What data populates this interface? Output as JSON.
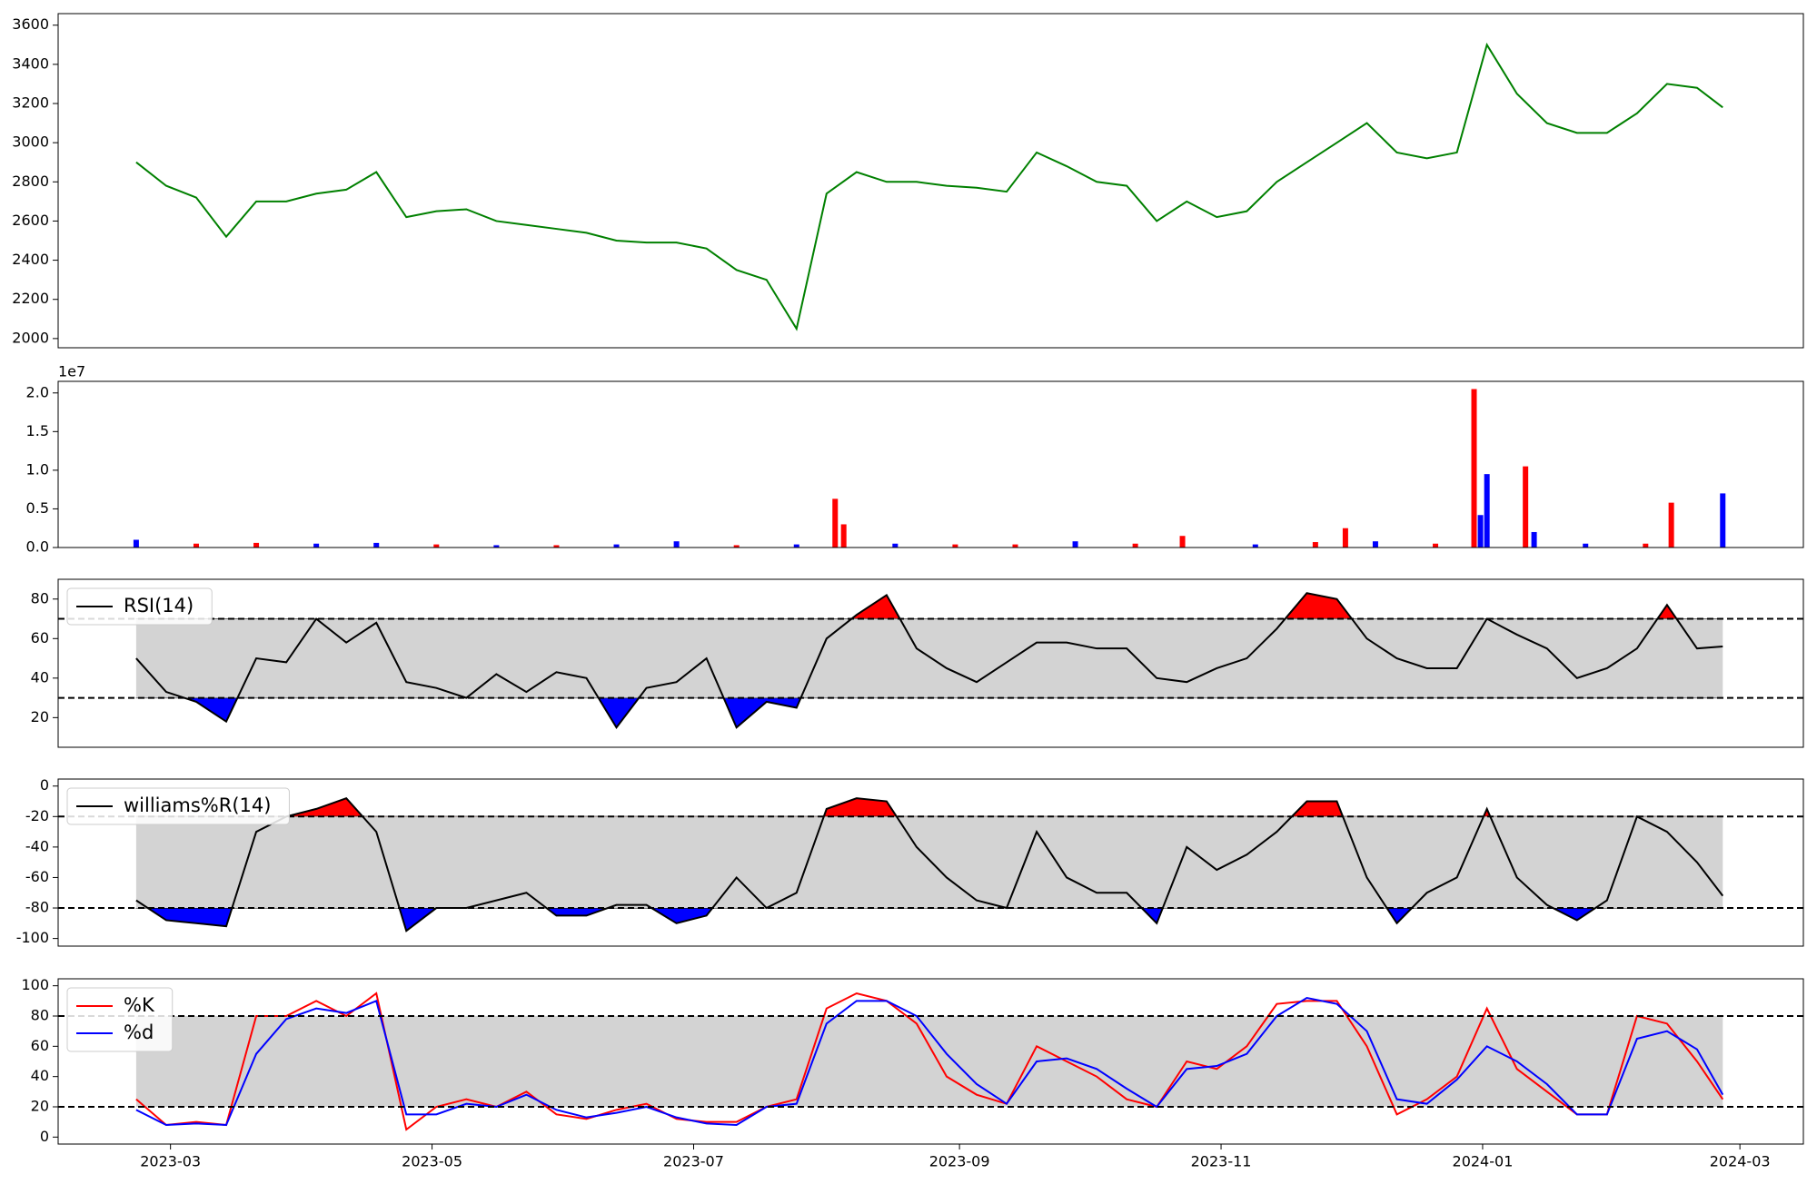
{
  "chart_data": [
    {
      "type": "line",
      "xlim": [
        1.8,
        408.8
      ],
      "ylim": [
        1953,
        3659
      ],
      "yticks": [
        2000,
        2200,
        2400,
        2600,
        2800,
        3000,
        3200,
        3400,
        3600
      ],
      "x": [
        20,
        27,
        34,
        41,
        48,
        55,
        62,
        69,
        76,
        83,
        90,
        97,
        104,
        111,
        118,
        125,
        132,
        139,
        146,
        153,
        160,
        167,
        174,
        181,
        188,
        195,
        202,
        209,
        216,
        223,
        230,
        237,
        244,
        251,
        258,
        265,
        272,
        279,
        286,
        293,
        300,
        307,
        314,
        321,
        328,
        335,
        342,
        349,
        356,
        363,
        370,
        377,
        384,
        390
      ],
      "series": [
        {
          "color": "green",
          "values": [
            2900,
            2780,
            2720,
            2520,
            2700,
            2700,
            2740,
            2760,
            2850,
            2620,
            2650,
            2660,
            2600,
            2580,
            2560,
            2540,
            2500,
            2490,
            2490,
            2460,
            2350,
            2300,
            2050,
            2740,
            2850,
            2800,
            2800,
            2780,
            2770,
            2750,
            2950,
            2880,
            2800,
            2780,
            2600,
            2700,
            2620,
            2650,
            2800,
            2900,
            3000,
            3100,
            2950,
            2920,
            2950,
            3500,
            3250,
            3100,
            3050,
            3050,
            3150,
            3300,
            3280,
            3180
          ]
        }
      ]
    },
    {
      "type": "bar",
      "xlim": [
        1.8,
        408.8
      ],
      "ylim": [
        0,
        2.15
      ],
      "offset_label": "1e7",
      "yticks": [
        {
          "value": 0,
          "label": "0.0"
        },
        0.5,
        {
          "value": 1,
          "label": "1.0"
        },
        1.5,
        {
          "value": 2,
          "label": "2.0"
        }
      ],
      "x": [
        20,
        34,
        48,
        62,
        76,
        90,
        104,
        118,
        132,
        146,
        160,
        174,
        183,
        185,
        197,
        211,
        225,
        239,
        253,
        264,
        281,
        295,
        302,
        309,
        323,
        332,
        333.5,
        335,
        344,
        346,
        358,
        372,
        378,
        390
      ],
      "values": [
        0.1,
        0.05,
        0.06,
        0.05,
        0.06,
        0.04,
        0.03,
        0.03,
        0.04,
        0.08,
        0.03,
        0.04,
        0.63,
        0.3,
        0.05,
        0.04,
        0.04,
        0.08,
        0.05,
        0.15,
        0.04,
        0.07,
        0.25,
        0.08,
        0.05,
        2.05,
        0.42,
        0.95,
        1.05,
        0.2,
        0.05,
        0.05,
        0.58,
        0.7
      ],
      "colors": [
        "blue",
        "red",
        "red",
        "blue",
        "blue",
        "red",
        "blue",
        "red",
        "blue",
        "blue",
        "red",
        "blue",
        "red",
        "red",
        "blue",
        "red",
        "red",
        "blue",
        "red",
        "red",
        "blue",
        "red",
        "red",
        "blue",
        "red",
        "red",
        "blue",
        "blue",
        "red",
        "blue",
        "blue",
        "red",
        "red",
        "blue"
      ]
    },
    {
      "type": "line",
      "xlim": [
        1.8,
        408.8
      ],
      "ylim": [
        5,
        90
      ],
      "yticks": [
        20,
        40,
        60,
        80
      ],
      "thresholds": [
        30,
        70
      ],
      "band_color": "#d3d3d3",
      "above_color": "red",
      "below_color": "blue",
      "legend": "upper left",
      "x": [
        20,
        27,
        34,
        41,
        48,
        55,
        62,
        69,
        76,
        83,
        90,
        97,
        104,
        111,
        118,
        125,
        132,
        139,
        146,
        153,
        160,
        167,
        174,
        181,
        188,
        195,
        202,
        209,
        216,
        223,
        230,
        237,
        244,
        251,
        258,
        265,
        272,
        279,
        286,
        293,
        300,
        307,
        314,
        321,
        328,
        335,
        342,
        349,
        356,
        363,
        370,
        377,
        384,
        390
      ],
      "series": [
        {
          "name": "RSI(14)",
          "color": "black",
          "values": [
            50,
            33,
            28,
            18,
            50,
            48,
            70,
            58,
            68,
            38,
            35,
            30,
            42,
            33,
            43,
            40,
            15,
            35,
            38,
            50,
            15,
            28,
            25,
            60,
            72,
            82,
            55,
            45,
            38,
            48,
            58,
            58,
            55,
            55,
            40,
            38,
            45,
            50,
            65,
            83,
            80,
            60,
            50,
            45,
            45,
            70,
            62,
            55,
            40,
            45,
            55,
            77,
            55,
            56
          ]
        }
      ]
    },
    {
      "type": "line",
      "xlim": [
        1.8,
        408.8
      ],
      "ylim": [
        -105,
        4.6
      ],
      "yticks": [
        -100,
        -80,
        -60,
        -40,
        -20,
        0
      ],
      "thresholds": [
        -80,
        -20
      ],
      "band_color": "#d3d3d3",
      "above_color": "red",
      "below_color": "blue",
      "legend": "upper left",
      "x": [
        20,
        27,
        34,
        41,
        48,
        55,
        62,
        69,
        76,
        83,
        90,
        97,
        104,
        111,
        118,
        125,
        132,
        139,
        146,
        153,
        160,
        167,
        174,
        181,
        188,
        195,
        202,
        209,
        216,
        223,
        230,
        237,
        244,
        251,
        258,
        265,
        272,
        279,
        286,
        293,
        300,
        307,
        314,
        321,
        328,
        335,
        342,
        349,
        356,
        363,
        370,
        377,
        384,
        390
      ],
      "series": [
        {
          "name": "williams%R(14)",
          "color": "black",
          "values": [
            -75,
            -88,
            -90,
            -92,
            -30,
            -20,
            -15,
            -8,
            -30,
            -95,
            -80,
            -80,
            -75,
            -70,
            -85,
            -85,
            -78,
            -78,
            -90,
            -85,
            -60,
            -80,
            -70,
            -15,
            -8,
            -10,
            -40,
            -60,
            -75,
            -80,
            -30,
            -60,
            -70,
            -70,
            -90,
            -40,
            -55,
            -45,
            -30,
            -10,
            -10,
            -60,
            -90,
            -70,
            -60,
            -15,
            -60,
            -78,
            -88,
            -75,
            -20,
            -30,
            -50,
            -72
          ]
        }
      ]
    },
    {
      "type": "line",
      "xlim": [
        1.8,
        408.8
      ],
      "ylim": [
        -4.6,
        104.6
      ],
      "yticks": [
        0,
        20,
        40,
        60,
        80,
        100
      ],
      "thresholds": [
        20,
        80
      ],
      "band_color": "#d3d3d3",
      "legend": "upper left",
      "xticks": [
        {
          "value": 28,
          "label": "2023-03"
        },
        {
          "value": 89,
          "label": "2023-05"
        },
        {
          "value": 150,
          "label": "2023-07"
        },
        {
          "value": 212,
          "label": "2023-09"
        },
        {
          "value": 273,
          "label": "2023-11"
        },
        {
          "value": 334,
          "label": "2024-01"
        },
        {
          "value": 394,
          "label": "2024-03"
        }
      ],
      "x": [
        20,
        27,
        34,
        41,
        48,
        55,
        62,
        69,
        76,
        83,
        90,
        97,
        104,
        111,
        118,
        125,
        132,
        139,
        146,
        153,
        160,
        167,
        174,
        181,
        188,
        195,
        202,
        209,
        216,
        223,
        230,
        237,
        244,
        251,
        258,
        265,
        272,
        279,
        286,
        293,
        300,
        307,
        314,
        321,
        328,
        335,
        342,
        349,
        356,
        363,
        370,
        377,
        384,
        390
      ],
      "series": [
        {
          "name": "%K",
          "color": "red",
          "values": [
            25,
            8,
            10,
            8,
            80,
            80,
            90,
            80,
            95,
            5,
            20,
            25,
            20,
            30,
            15,
            12,
            18,
            22,
            12,
            10,
            10,
            20,
            25,
            85,
            95,
            90,
            75,
            40,
            28,
            22,
            60,
            50,
            40,
            25,
            20,
            50,
            45,
            60,
            88,
            90,
            90,
            60,
            15,
            25,
            40,
            85,
            45,
            30,
            15,
            15,
            80,
            75,
            50,
            25
          ]
        },
        {
          "name": "%d",
          "color": "blue",
          "values": [
            18,
            8,
            9,
            8,
            55,
            78,
            85,
            82,
            90,
            15,
            15,
            22,
            20,
            28,
            18,
            13,
            16,
            20,
            13,
            9,
            8,
            20,
            22,
            75,
            90,
            90,
            80,
            55,
            35,
            22,
            50,
            52,
            45,
            32,
            20,
            45,
            47,
            55,
            80,
            92,
            88,
            70,
            25,
            22,
            38,
            60,
            50,
            35,
            15,
            15,
            65,
            70,
            58,
            28
          ]
        }
      ]
    }
  ]
}
